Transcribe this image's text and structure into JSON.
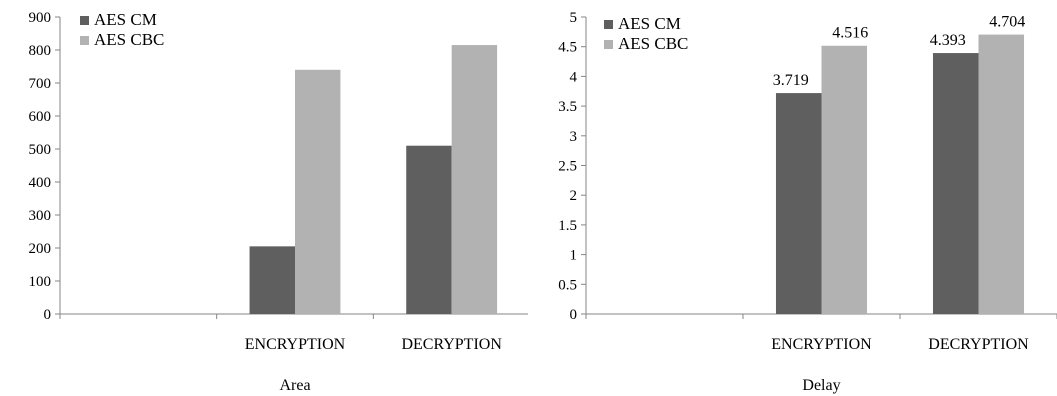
{
  "chart_data": [
    {
      "type": "bar",
      "categories": [
        "",
        "ENCRYPTION",
        "DECRYPTION"
      ],
      "series": [
        {
          "name": "AES CM",
          "values": [
            null,
            205,
            510
          ]
        },
        {
          "name": "AES CBC",
          "values": [
            null,
            740,
            815
          ]
        }
      ],
      "xlabel": "Area",
      "ylabel": "",
      "ylim": [
        0,
        900
      ],
      "yticks": [
        0,
        100,
        200,
        300,
        400,
        500,
        600,
        700,
        800,
        900
      ],
      "data_labels": [],
      "legend": "top-left",
      "grid": false,
      "colors": [
        "#5f5f5f",
        "#b2b2b2"
      ]
    },
    {
      "type": "bar",
      "categories": [
        "",
        "ENCRYPTION",
        "DECRYPTION"
      ],
      "series": [
        {
          "name": "AES CM",
          "values": [
            null,
            3.719,
            4.393
          ]
        },
        {
          "name": "AES CBC",
          "values": [
            null,
            4.516,
            4.704
          ]
        }
      ],
      "xlabel": "Delay",
      "ylabel": "",
      "ylim": [
        0,
        5
      ],
      "yticks": [
        "0",
        "0.5",
        "1",
        "1.5",
        "2",
        "2.5",
        "3",
        "3.5",
        "4",
        "4.5",
        "5"
      ],
      "data_labels": [
        "3.719",
        "4.393",
        "4.516",
        "4.704"
      ],
      "legend": "top-left",
      "grid": false,
      "colors": [
        "#5f5f5f",
        "#b2b2b2"
      ]
    }
  ]
}
